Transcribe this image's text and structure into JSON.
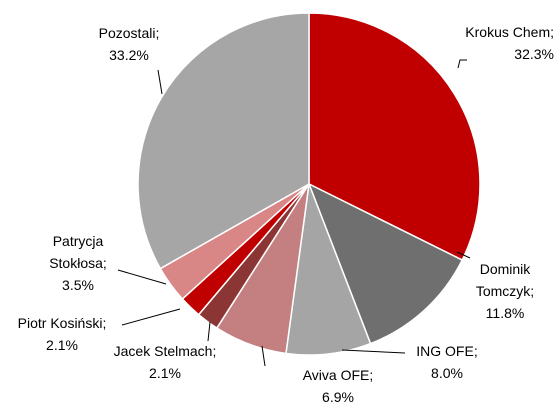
{
  "chart_data": {
    "type": "pie",
    "categories": [
      "Krokus Chem",
      "Dominik Tomczyk",
      "ING OFE",
      "Aviva OFE",
      "Jacek Stelmach",
      "Piotr Kosiński",
      "Patrycja Stokłosa",
      "Pozostali"
    ],
    "values": [
      32.3,
      11.8,
      8.0,
      6.9,
      2.1,
      2.1,
      3.5,
      33.2
    ],
    "value_labels": [
      "32.3%",
      "11.8%",
      "8.0%",
      "6.9%",
      "2.1%",
      "2.1%",
      "3.5%",
      "33.2%"
    ],
    "label_separator": ";",
    "colors": [
      "#c00000",
      "#6f6f6f",
      "#a5a5a5",
      "#c48080",
      "#8b3535",
      "#c00000",
      "#d98686",
      "#a6a6a6"
    ]
  }
}
